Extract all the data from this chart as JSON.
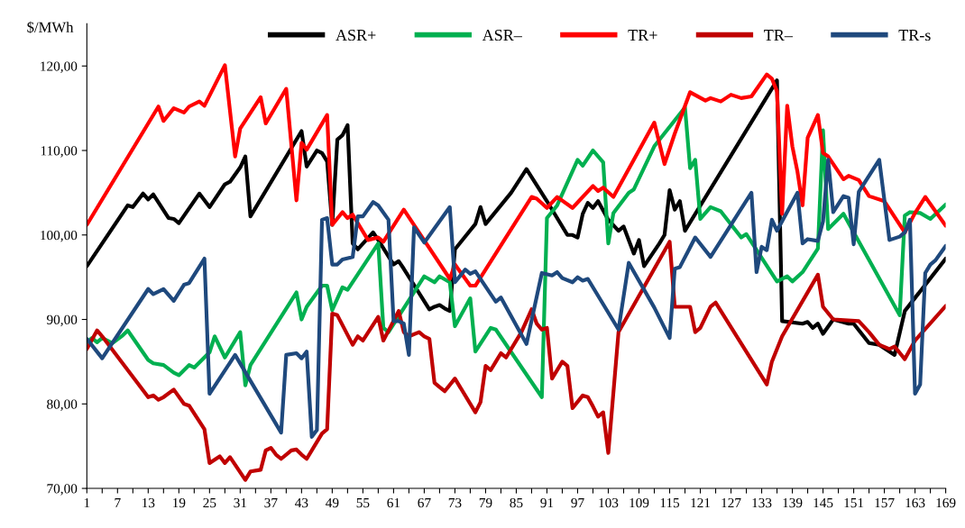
{
  "chart_data": {
    "type": "line",
    "ylabel": "$/MWh",
    "legend": "top right",
    "grid": false,
    "marker": "none",
    "line_style": "solid",
    "xlim": [
      1,
      169
    ],
    "ylim": [
      70,
      125
    ],
    "xticks": [
      1,
      {
        "value": 4,
        "label": null
      },
      7,
      {
        "value": 10,
        "label": null
      },
      13,
      {
        "value": 16,
        "label": null
      },
      19,
      {
        "value": 22,
        "label": null
      },
      25,
      {
        "value": 28,
        "label": null
      },
      31,
      {
        "value": 34,
        "label": null
      },
      37,
      {
        "value": 40,
        "label": null
      },
      43,
      {
        "value": 46,
        "label": null
      },
      49,
      {
        "value": 52,
        "label": null
      },
      55,
      {
        "value": 58,
        "label": null
      },
      61,
      {
        "value": 64,
        "label": null
      },
      67,
      {
        "value": 70,
        "label": null
      },
      73,
      {
        "value": 76,
        "label": null
      },
      79,
      {
        "value": 82,
        "label": null
      },
      85,
      {
        "value": 88,
        "label": null
      },
      91,
      {
        "value": 94,
        "label": null
      },
      97,
      {
        "value": 100,
        "label": null
      },
      103,
      {
        "value": 106,
        "label": null
      },
      109,
      {
        "value": 112,
        "label": null
      },
      115,
      {
        "value": 118,
        "label": null
      },
      121,
      {
        "value": 124,
        "label": null
      },
      127,
      {
        "value": 130,
        "label": null
      },
      133,
      {
        "value": 136,
        "label": null
      },
      139,
      {
        "value": 142,
        "label": null
      },
      145,
      {
        "value": 148,
        "label": null
      },
      151,
      {
        "value": 154,
        "label": null
      },
      157,
      {
        "value": 160,
        "label": null
      },
      163,
      {
        "value": 166,
        "label": null
      },
      169
    ],
    "yticks": [
      {
        "value": 70,
        "label": "70,00"
      },
      {
        "value": 80,
        "label": "80,00"
      },
      {
        "value": 90,
        "label": "90,00"
      },
      {
        "value": 100,
        "label": "100,00"
      },
      {
        "value": 110,
        "label": "110,00"
      },
      {
        "value": 120,
        "label": "120,00"
      }
    ],
    "series": [
      {
        "name": "ASR+",
        "color": "#000000",
        "x": [
          1,
          9,
          10,
          12,
          13,
          14,
          17,
          18,
          19,
          23,
          25,
          28,
          29,
          31,
          32,
          33,
          43,
          44,
          46,
          47,
          48,
          49,
          50,
          51,
          52,
          53,
          54,
          57,
          58,
          61,
          62,
          63,
          68,
          69,
          70,
          71,
          72,
          73,
          77,
          78,
          79,
          84,
          87,
          91,
          95,
          96,
          97,
          98,
          99,
          100,
          101,
          103,
          105,
          106,
          108,
          109,
          110,
          113,
          114,
          115,
          116,
          117,
          118,
          136,
          137,
          141,
          142,
          143,
          144,
          145,
          147,
          150,
          151,
          154,
          156,
          158,
          159,
          161,
          169
        ],
        "values": [
          96.3,
          103.5,
          103.3,
          104.9,
          104.2,
          104.8,
          102,
          101.9,
          101.4,
          104.9,
          103.3,
          106,
          106.3,
          108,
          109.3,
          102.2,
          112.3,
          108.1,
          110,
          109.7,
          108.7,
          101.2,
          111.3,
          111.8,
          113,
          99,
          98.3,
          100.3,
          99.4,
          96.5,
          96.9,
          96,
          91.2,
          91.5,
          91.7,
          91.3,
          91,
          98.3,
          101.3,
          103.3,
          101.3,
          105,
          107.8,
          104,
          100,
          100,
          99.7,
          102.5,
          103.8,
          103.2,
          104,
          101.8,
          100.5,
          101,
          97.8,
          99.4,
          96.3,
          99,
          100,
          105.3,
          103,
          104,
          100.5,
          118.3,
          89.8,
          89.5,
          89.7,
          89,
          89.5,
          88.3,
          90,
          89.5,
          89.5,
          87.2,
          87,
          86.2,
          85.8,
          91,
          97.2
        ]
      },
      {
        "name": "ASR–",
        "color": "#00b050",
        "x": [
          1,
          2,
          3,
          4,
          6,
          8,
          9,
          13,
          14,
          16,
          18,
          19,
          21,
          22,
          25,
          26,
          28,
          31,
          32,
          33,
          42,
          43,
          44,
          47,
          48,
          49,
          51,
          52,
          58,
          59,
          60,
          67,
          69,
          70,
          72,
          73,
          76,
          77,
          80,
          81,
          90,
          91,
          93,
          97,
          98,
          100,
          102,
          103,
          104,
          107,
          108,
          112,
          118,
          119,
          120,
          121,
          123,
          125,
          129,
          130,
          136,
          138,
          139,
          141,
          144,
          145,
          146,
          149,
          160,
          161,
          162,
          164,
          166,
          169
        ],
        "values": [
          87.3,
          87.8,
          87.3,
          87.8,
          87.2,
          88.1,
          88.7,
          85.2,
          84.8,
          84.6,
          83.7,
          83.4,
          84.6,
          84.3,
          86.1,
          88,
          85.5,
          88.5,
          82.2,
          84.6,
          93.2,
          90,
          91.5,
          94,
          94,
          91.1,
          93.8,
          93.5,
          99,
          89,
          88.5,
          95.1,
          94.4,
          95.1,
          94.4,
          89.2,
          92.5,
          86.2,
          89,
          88.8,
          80.8,
          102,
          103.5,
          108.9,
          108.2,
          110,
          108.6,
          99,
          102.6,
          105,
          105.4,
          110.5,
          115.1,
          107.9,
          108.9,
          101.9,
          103.3,
          102.8,
          99.7,
          100.1,
          94.5,
          95.1,
          94.5,
          95.6,
          98.4,
          112.4,
          100.7,
          102.5,
          90.5,
          102.3,
          102.7,
          102.6,
          101.9,
          103.6
        ]
      },
      {
        "name": "TR+",
        "color": "#ff0000",
        "x": [
          1,
          15,
          16,
          18,
          20,
          21,
          23,
          24,
          28,
          30,
          31,
          35,
          36,
          40,
          42,
          43,
          44,
          48,
          49,
          51,
          52,
          53,
          56,
          58,
          59,
          63,
          72,
          73,
          76,
          77,
          88,
          89,
          91,
          93,
          96,
          100,
          101,
          102,
          104,
          112,
          114,
          116,
          119,
          122,
          123,
          125,
          127,
          129,
          131,
          134,
          135,
          136,
          137,
          138,
          139,
          140,
          141,
          142,
          144,
          145,
          146,
          149,
          150,
          152,
          154,
          157,
          161,
          163,
          165,
          169
        ],
        "values": [
          101.2,
          115.2,
          113.5,
          115,
          114.5,
          115.2,
          115.8,
          115.3,
          120.1,
          109.3,
          112.6,
          116.3,
          113.2,
          117.3,
          104.1,
          110.9,
          110.1,
          114.2,
          101.2,
          102.7,
          102,
          102.4,
          99.4,
          99.7,
          99.2,
          103,
          94.8,
          96.5,
          94,
          94,
          104.5,
          104.3,
          103.2,
          104.5,
          103.2,
          105.8,
          105.2,
          105.6,
          104.5,
          113.3,
          108.4,
          112,
          116.9,
          115.9,
          116.2,
          115.8,
          116.6,
          116.2,
          116.4,
          119,
          118.5,
          117,
          102.5,
          115.3,
          110.5,
          107.5,
          103.5,
          111.5,
          114.2,
          109.7,
          109.3,
          106.6,
          107,
          106.5,
          104.6,
          104,
          100.3,
          102.6,
          104.5,
          101.1
        ]
      },
      {
        "name": "TR–",
        "color": "#c00000",
        "x": [
          1,
          3,
          4,
          13,
          14,
          15,
          16,
          18,
          20,
          21,
          24,
          25,
          27,
          28,
          29,
          32,
          33,
          35,
          36,
          37,
          38,
          39,
          41,
          42,
          43,
          44,
          47,
          48,
          49,
          50,
          53,
          54,
          55,
          58,
          59,
          62,
          63,
          64,
          66,
          67,
          68,
          69,
          70,
          71,
          73,
          77,
          78,
          79,
          80,
          81,
          82,
          83,
          86,
          88,
          89,
          90,
          91,
          92,
          94,
          95,
          96,
          98,
          99,
          100,
          101,
          102,
          103,
          105,
          115,
          116,
          119,
          120,
          121,
          123,
          124,
          134,
          135,
          137,
          144,
          145,
          147,
          152,
          154,
          156,
          158,
          159,
          161,
          163,
          169
        ],
        "values": [
          86.5,
          88.7,
          88,
          80.8,
          81,
          80.5,
          80.8,
          81.7,
          80,
          79.8,
          77,
          73,
          73.8,
          73,
          73.7,
          71,
          72,
          72.2,
          74.5,
          74.8,
          74,
          73.5,
          74.5,
          74.6,
          74,
          73.5,
          76.5,
          77,
          90.7,
          90.5,
          87,
          88,
          87.5,
          90.3,
          87.5,
          91,
          88.5,
          88,
          88.5,
          88,
          87.7,
          82.5,
          82,
          81.5,
          83,
          79,
          80.2,
          84.5,
          84,
          85,
          86,
          85.5,
          88.5,
          91.2,
          89.5,
          88.8,
          89,
          83,
          85,
          84.5,
          79.5,
          81,
          80.8,
          79.7,
          78.5,
          79,
          74.2,
          88.5,
          99.2,
          91.5,
          91.5,
          88.5,
          89,
          91.5,
          92,
          82.3,
          85,
          88,
          95.3,
          91.5,
          90,
          89.8,
          88.5,
          87,
          86.5,
          86.8,
          85.3,
          87.5,
          91.6
        ]
      },
      {
        "name": "TR-s",
        "color": "#1f497d",
        "x": [
          1,
          4,
          13,
          14,
          16,
          18,
          20,
          21,
          24,
          25,
          30,
          39,
          40,
          42,
          43,
          44,
          45,
          46,
          47,
          48,
          49,
          50,
          51,
          53,
          54,
          55,
          57,
          58,
          60,
          61,
          62,
          63,
          64,
          65,
          67,
          72,
          73,
          75,
          76,
          77,
          81,
          82,
          87,
          90,
          92,
          93,
          94,
          96,
          97,
          98,
          99,
          105,
          107,
          112,
          115,
          116,
          117,
          120,
          123,
          131,
          132,
          133,
          134,
          135,
          136,
          140,
          141,
          142,
          144,
          145,
          146,
          147,
          149,
          150,
          151,
          152,
          156,
          158,
          160,
          161,
          162,
          163,
          164,
          165,
          166,
          167,
          169
        ],
        "values": [
          87.7,
          85.4,
          93.6,
          93,
          93.6,
          92.2,
          94.1,
          94.3,
          97.2,
          81.2,
          85.8,
          76.6,
          85.8,
          86,
          85.4,
          86.2,
          76.1,
          76.9,
          101.8,
          102,
          96.5,
          96.5,
          97.1,
          97.4,
          102.2,
          102.2,
          103.9,
          103.5,
          101.8,
          89.8,
          89.8,
          89.5,
          85.8,
          100.9,
          99.1,
          103.3,
          94.4,
          95.9,
          95.4,
          95.7,
          92.1,
          92.6,
          87.1,
          95.5,
          95.2,
          95.6,
          94.9,
          94.4,
          95,
          94.6,
          94.8,
          88.8,
          96.7,
          91.4,
          87.8,
          96,
          96.2,
          99.7,
          97.4,
          105,
          95.6,
          98.6,
          98.2,
          101.8,
          100.5,
          105,
          99,
          99.5,
          99.3,
          101.6,
          108.9,
          102.7,
          104.6,
          104.4,
          98.9,
          105.1,
          108.9,
          99.4,
          99.8,
          100.3,
          101.8,
          81.2,
          82.3,
          95.5,
          96.5,
          97,
          98.7
        ]
      }
    ]
  }
}
